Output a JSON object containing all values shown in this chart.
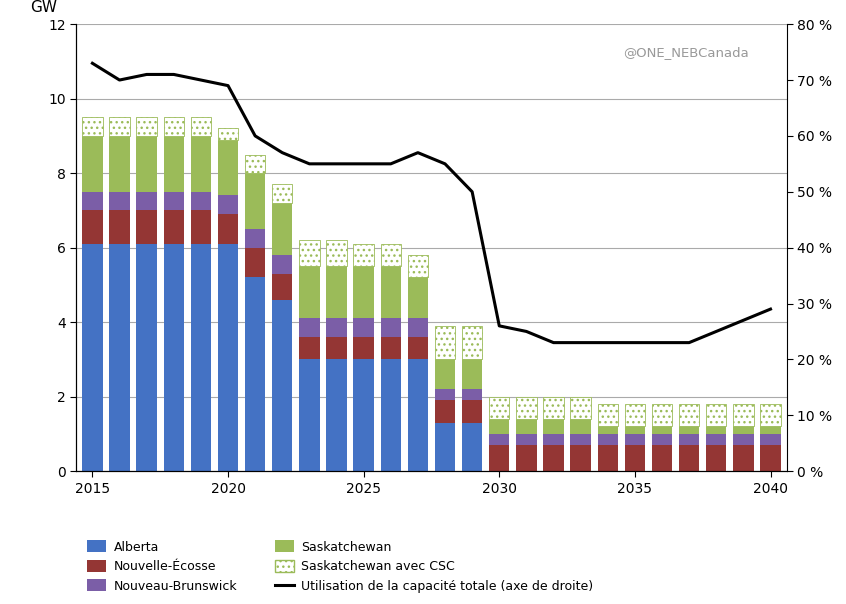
{
  "years": [
    2015,
    2016,
    2017,
    2018,
    2019,
    2020,
    2021,
    2022,
    2023,
    2024,
    2025,
    2026,
    2027,
    2028,
    2029,
    2030,
    2031,
    2032,
    2033,
    2034,
    2035,
    2036,
    2037,
    2038,
    2039,
    2040
  ],
  "alberta": [
    6.1,
    6.1,
    6.1,
    6.1,
    6.1,
    6.1,
    5.2,
    4.6,
    3.0,
    3.0,
    3.0,
    3.0,
    3.0,
    1.3,
    1.3,
    0.0,
    0.0,
    0.0,
    0.0,
    0.0,
    0.0,
    0.0,
    0.0,
    0.0,
    0.0,
    0.0
  ],
  "nouvelle_ecosse": [
    0.9,
    0.9,
    0.9,
    0.9,
    0.9,
    0.8,
    0.8,
    0.7,
    0.6,
    0.6,
    0.6,
    0.6,
    0.6,
    0.6,
    0.6,
    0.7,
    0.7,
    0.7,
    0.7,
    0.7,
    0.7,
    0.7,
    0.7,
    0.7,
    0.7,
    0.7
  ],
  "nouveau_brunswick": [
    0.5,
    0.5,
    0.5,
    0.5,
    0.5,
    0.5,
    0.5,
    0.5,
    0.5,
    0.5,
    0.5,
    0.5,
    0.5,
    0.3,
    0.3,
    0.3,
    0.3,
    0.3,
    0.3,
    0.3,
    0.3,
    0.3,
    0.3,
    0.3,
    0.3,
    0.3
  ],
  "saskatchewan": [
    1.5,
    1.5,
    1.5,
    1.5,
    1.5,
    1.5,
    1.5,
    1.4,
    1.4,
    1.4,
    1.4,
    1.4,
    1.1,
    0.8,
    0.8,
    0.4,
    0.4,
    0.4,
    0.4,
    0.2,
    0.2,
    0.2,
    0.2,
    0.2,
    0.2,
    0.2
  ],
  "sask_csc": [
    0.5,
    0.5,
    0.5,
    0.5,
    0.5,
    0.3,
    0.5,
    0.5,
    0.7,
    0.7,
    0.6,
    0.6,
    0.6,
    0.9,
    0.9,
    0.6,
    0.6,
    0.6,
    0.6,
    0.6,
    0.6,
    0.6,
    0.6,
    0.6,
    0.6,
    0.6
  ],
  "utilization": [
    73,
    70,
    71,
    71,
    70,
    69,
    60,
    57,
    55,
    55,
    55,
    55,
    57,
    55,
    50,
    26,
    25,
    23,
    23,
    23,
    23,
    23,
    23,
    25,
    27,
    29
  ],
  "color_alberta": "#4472C4",
  "color_nouvelle_ecosse": "#943634",
  "color_nouveau_brunswick": "#7B5EA7",
  "color_saskatchewan": "#9BBB59",
  "color_sask_csc_fg": "#9BBB59",
  "color_line": "#000000",
  "ylim_left": [
    0,
    12
  ],
  "ylim_right": [
    0,
    80
  ],
  "yticks_left": [
    0,
    2,
    4,
    6,
    8,
    10,
    12
  ],
  "yticks_right": [
    0,
    10,
    20,
    30,
    40,
    50,
    60,
    70,
    80
  ],
  "xticks": [
    2015,
    2020,
    2025,
    2030,
    2035,
    2040
  ],
  "annotation": "@ONE_NEBCanada",
  "gw_label": "GW"
}
